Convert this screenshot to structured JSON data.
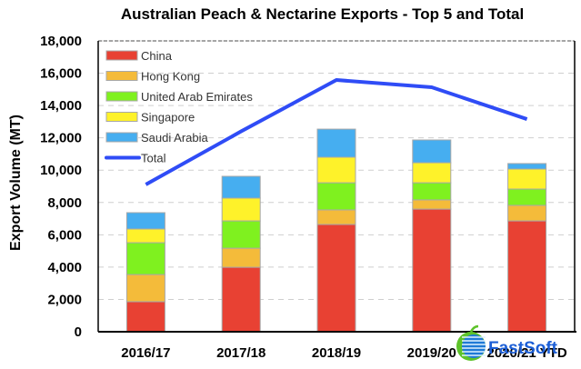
{
  "chart_data": {
    "type": "bar",
    "stacked": true,
    "title": "Australian Peach & Nectarine Exports - Top 5 and Total",
    "xlabel": "",
    "ylabel": "Export Volume (MT)",
    "ylim": [
      0,
      18000
    ],
    "yticks": [
      "0",
      "2,000",
      "4,000",
      "6,000",
      "8,000",
      "10,000",
      "12,000",
      "14,000",
      "16,000",
      "18,000"
    ],
    "grid": true,
    "legend_position": "top-left inside",
    "categories": [
      "2016/17",
      "2017/18",
      "2018/19",
      "2019/20",
      "2020/21 YTD"
    ],
    "series": [
      {
        "name": "China",
        "type": "bar",
        "color": "#e84133",
        "values": [
          1860,
          3990,
          6640,
          7590,
          6860
        ]
      },
      {
        "name": "Hong Kong",
        "type": "bar",
        "color": "#f4bb3a",
        "values": [
          1680,
          1180,
          900,
          570,
          960
        ]
      },
      {
        "name": "United Arab Emirates",
        "type": "bar",
        "color": "#7ff11f",
        "values": [
          1970,
          1690,
          1680,
          1060,
          1010
        ]
      },
      {
        "name": "Singapore",
        "type": "bar",
        "color": "#fef22a",
        "values": [
          850,
          1410,
          1580,
          1240,
          1240
        ]
      },
      {
        "name": "Saudi Arabia",
        "type": "bar",
        "color": "#46aef0",
        "values": [
          1010,
          1350,
          1740,
          1410,
          340
        ]
      },
      {
        "name": "Total",
        "type": "line",
        "color": "#2f4cf6",
        "values": [
          9110,
          12400,
          15580,
          15130,
          13160
        ]
      }
    ]
  },
  "watermark": {
    "text": "FastSoft",
    "icon": "globe-logo-icon"
  }
}
